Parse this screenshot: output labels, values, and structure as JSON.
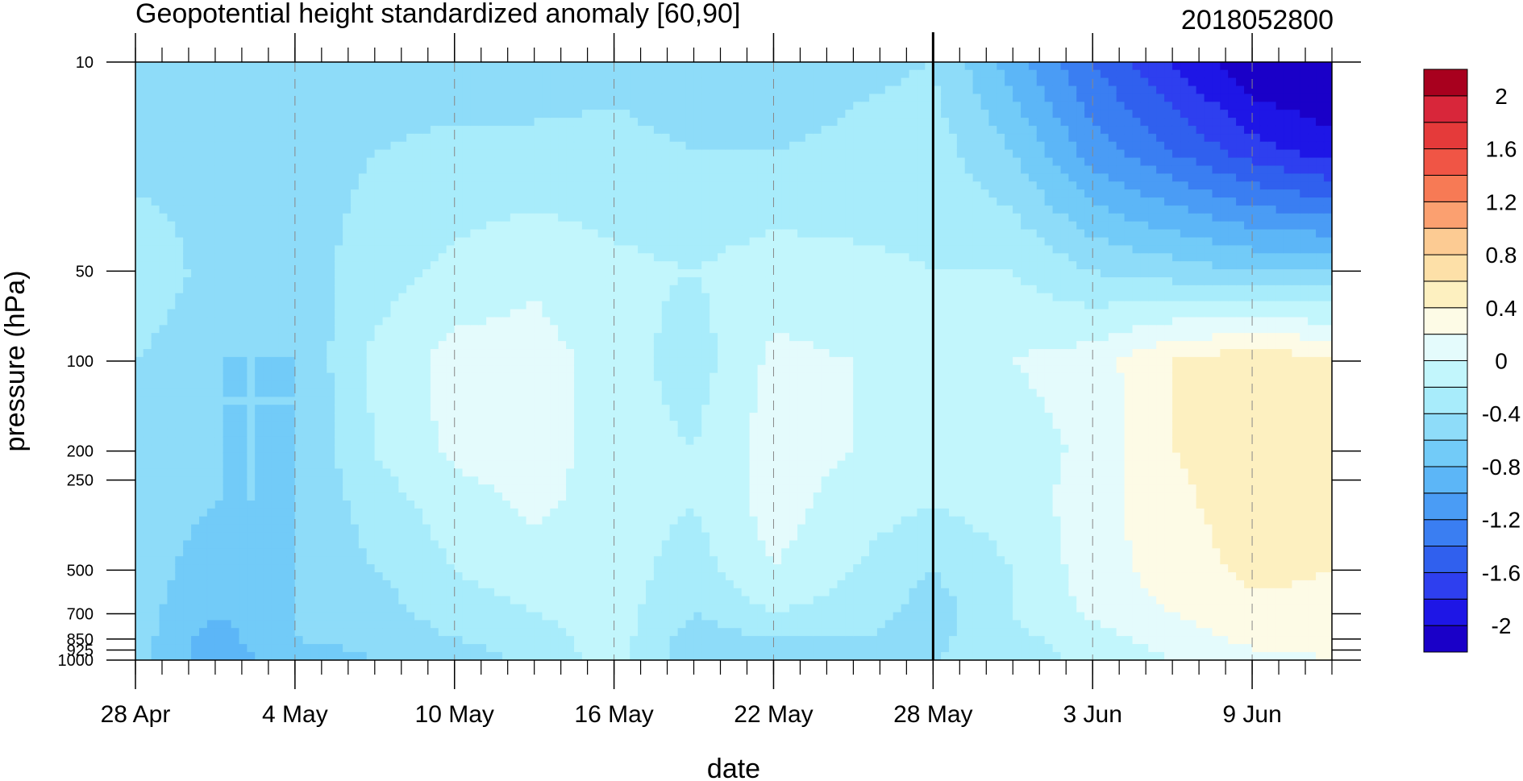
{
  "chart_data": {
    "type": "heatmap",
    "title": "Geopotential height standardized anomaly [60,90]",
    "subtitle_right": "2018052800",
    "xlabel": "date",
    "ylabel": "pressure (hPa)",
    "log_y": true,
    "ylim": [
      1000,
      10
    ],
    "x_range_days_from_first_tick": [
      0,
      45
    ],
    "x_ticks": [
      {
        "day": 0,
        "label": "28 Apr"
      },
      {
        "day": 6,
        "label": "4 May"
      },
      {
        "day": 12,
        "label": "10 May"
      },
      {
        "day": 18,
        "label": "16 May"
      },
      {
        "day": 24,
        "label": "22 May"
      },
      {
        "day": 30,
        "label": "28 May"
      },
      {
        "day": 36,
        "label": "3 Jun"
      },
      {
        "day": 42,
        "label": "9 Jun"
      }
    ],
    "y_ticks": [
      {
        "p": 10,
        "label": "10"
      },
      {
        "p": 50,
        "label": "50"
      },
      {
        "p": 100,
        "label": "100"
      },
      {
        "p": 200,
        "label": "200"
      },
      {
        "p": 250,
        "label": "250"
      },
      {
        "p": 500,
        "label": "500"
      },
      {
        "p": 700,
        "label": "700"
      },
      {
        "p": 850,
        "label": "850"
      },
      {
        "p": 925,
        "label": "925"
      },
      {
        "p": 1000,
        "label": "1000"
      }
    ],
    "analysis_date_marker": "28 May",
    "levels": [
      -2.2,
      -2.0,
      -1.8,
      -1.6,
      -1.4,
      -1.2,
      -1.0,
      -0.8,
      -0.6,
      -0.4,
      -0.2,
      0,
      0.2,
      0.4,
      0.6,
      0.8,
      1.0,
      1.2,
      1.4,
      1.6,
      1.8,
      2.0,
      2.2
    ],
    "colorbar_labels": [
      {
        "value": 2,
        "label": "2"
      },
      {
        "value": 1.6,
        "label": "1.6"
      },
      {
        "value": 1.2,
        "label": "1.2"
      },
      {
        "value": 0.8,
        "label": "0.8"
      },
      {
        "value": 0.4,
        "label": "0.4"
      },
      {
        "value": 0,
        "label": "0"
      },
      {
        "value": -0.4,
        "label": "-0.4"
      },
      {
        "value": -0.8,
        "label": "-0.8"
      },
      {
        "value": -1.2,
        "label": "-1.2"
      },
      {
        "value": -1.6,
        "label": "-1.6"
      },
      {
        "value": -2,
        "label": "-2"
      }
    ],
    "colors": [
      "#1a00c8",
      "#1e16e6",
      "#2e3fef",
      "#3060ee",
      "#3a7ef2",
      "#4a9cf5",
      "#5cb6f7",
      "#72cbf8",
      "#8edcf9",
      "#a8ecfb",
      "#c2f6fc",
      "#e4fbfc",
      "#fdfbe6",
      "#fdf0c0",
      "#fde0a8",
      "#fccb93",
      "#fba070",
      "#f77a55",
      "#f05545",
      "#e53a3a",
      "#d8263a",
      "#a8001e"
    ],
    "x_days": [
      0,
      3,
      6,
      9,
      12,
      15,
      18,
      21,
      24,
      27,
      30,
      33,
      36,
      39,
      42,
      45
    ],
    "pressure_levels": [
      10,
      20,
      50,
      100,
      200,
      300,
      500,
      700,
      850,
      1000
    ],
    "values": [
      [
        -0.5,
        -0.5,
        -0.2,
        -0.4,
        -0.4,
        -0.5,
        -0.5,
        -0.5,
        -0.5,
        -0.5
      ],
      [
        -0.5,
        -0.5,
        -0.5,
        -0.6,
        -0.6,
        -0.6,
        -0.7,
        -0.8,
        -0.9,
        -0.9
      ],
      [
        -0.5,
        -0.5,
        -0.5,
        -0.6,
        -0.6,
        -0.6,
        -0.6,
        -0.6,
        -0.6,
        -0.7
      ],
      [
        -0.5,
        -0.4,
        -0.3,
        -0.15,
        -0.2,
        -0.3,
        -0.4,
        -0.5,
        -0.55,
        -0.6
      ],
      [
        -0.5,
        -0.35,
        -0.15,
        0.08,
        0.05,
        -0.1,
        -0.2,
        -0.3,
        -0.4,
        -0.5
      ],
      [
        -0.5,
        -0.35,
        -0.05,
        0.1,
        0.1,
        0.05,
        -0.1,
        -0.2,
        -0.3,
        -0.35
      ],
      [
        -0.45,
        -0.35,
        -0.15,
        -0.1,
        -0.1,
        -0.1,
        -0.1,
        -0.1,
        -0.1,
        -0.1
      ],
      [
        -0.5,
        -0.4,
        -0.2,
        -0.3,
        -0.2,
        -0.2,
        -0.3,
        -0.4,
        -0.5,
        -0.5
      ],
      [
        -0.55,
        -0.4,
        -0.1,
        0.05,
        0.1,
        0.1,
        0.0,
        -0.2,
        -0.4,
        -0.5
      ],
      [
        -0.45,
        -0.35,
        -0.15,
        0.0,
        0.0,
        -0.1,
        -0.2,
        -0.3,
        -0.4,
        -0.5
      ],
      [
        -0.4,
        -0.3,
        -0.2,
        -0.1,
        -0.1,
        -0.2,
        -0.4,
        -0.5,
        -0.45,
        -0.4
      ],
      [
        -0.9,
        -0.6,
        -0.2,
        0.0,
        -0.1,
        -0.1,
        -0.2,
        -0.2,
        -0.25,
        -0.3
      ],
      [
        -1.4,
        -1.1,
        -0.4,
        0.1,
        0.05,
        0.1,
        0.1,
        0.05,
        -0.1,
        -0.15
      ],
      [
        -1.8,
        -1.4,
        -0.5,
        0.4,
        0.4,
        0.35,
        0.3,
        0.2,
        0.1,
        0.0
      ],
      [
        -2.2,
        -1.7,
        -0.6,
        0.55,
        0.5,
        0.5,
        0.45,
        0.35,
        0.25,
        0.15
      ],
      [
        -2.3,
        -1.9,
        -0.6,
        0.45,
        0.45,
        0.45,
        0.4,
        0.35,
        0.25,
        0.2
      ]
    ]
  }
}
